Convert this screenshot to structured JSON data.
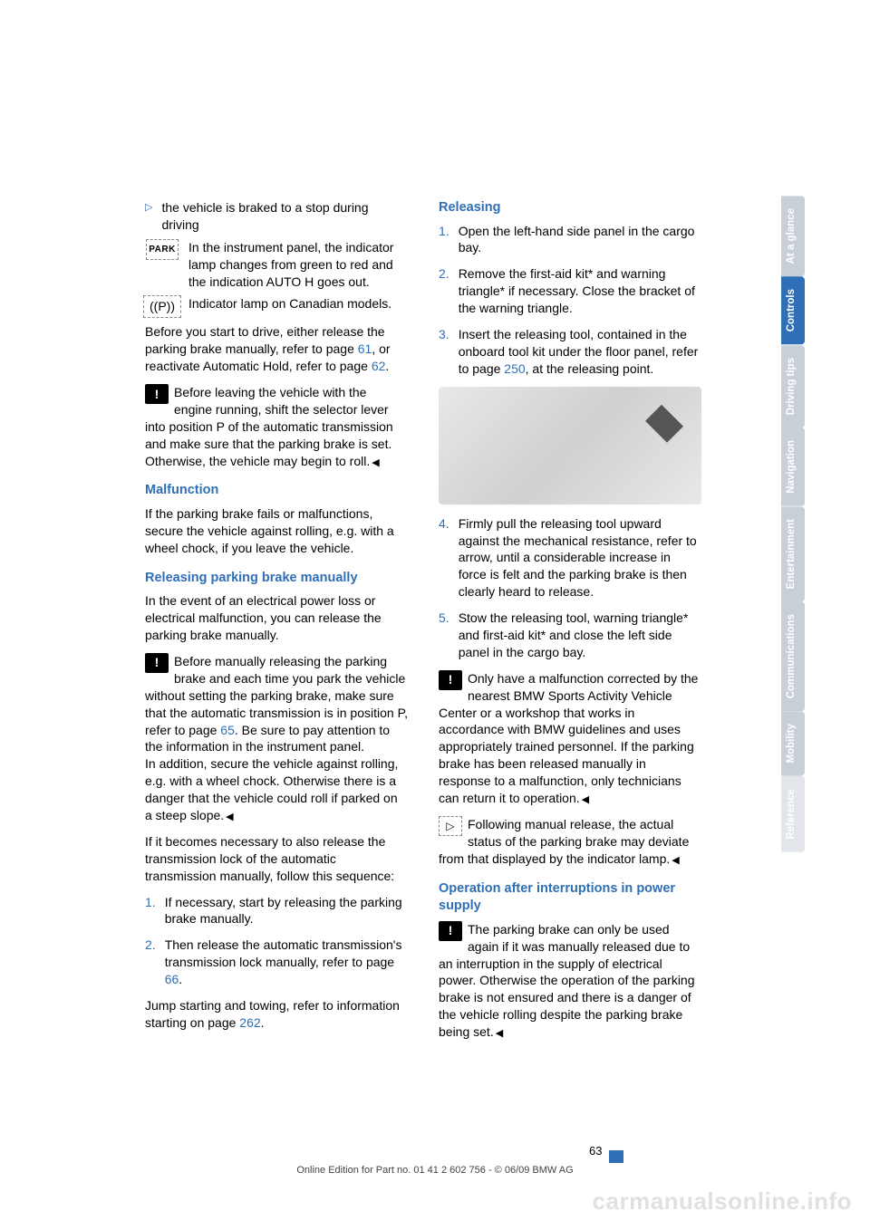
{
  "left": {
    "bullet1": "the vehicle is braked to a stop during driving",
    "park_text": "In the instrument panel, the indicator lamp changes from green to red and the indication AUTO H goes out.",
    "park_label": "PARK",
    "p_text": "Indicator lamp on Canadian models.",
    "p_label": "((P))",
    "before_drive_a": "Before you start to drive, either release the parking brake manually, refer to page ",
    "before_drive_link1": "61",
    "before_drive_b": ", or reactivate Automatic Hold, refer to page ",
    "before_drive_link2": "62",
    "before_drive_c": ".",
    "warn1": "Before leaving the vehicle with the engine running, shift the selector lever into position P of the automatic transmission and make sure that the parking brake is set. Otherwise, the vehicle may begin to roll.",
    "h_malfunction": "Malfunction",
    "malfunction_p": "If the parking brake fails or malfunctions, secure the vehicle against rolling, e.g. with a wheel chock, if you leave the vehicle.",
    "h_release_manual": "Releasing parking brake manually",
    "release_manual_p": "In the event of an electrical power loss or electrical malfunction, you can release the parking brake manually.",
    "warn2_a": "Before manually releasing the parking brake and each time you park the vehicle without setting the parking brake, make sure that the automatic transmission is in position P, refer to page ",
    "warn2_link": "65",
    "warn2_b": ". Be sure to pay attention to the information in the instrument panel.\nIn addition, secure the vehicle against rolling, e.g. with a wheel chock. Otherwise there is a danger that the vehicle could roll if parked on a steep slope.",
    "seq_intro": "If it becomes necessary to also release the transmission lock of the automatic transmission manually, follow this sequence:",
    "step1_n": "1.",
    "step1": "If necessary, start by releasing the parking brake manually.",
    "step2_n": "2.",
    "step2_a": "Then release the automatic transmission's transmission lock manually, refer to page ",
    "step2_link": "66",
    "step2_b": ".",
    "jump_a": "Jump starting and towing, refer to information starting on page ",
    "jump_link": "262",
    "jump_b": "."
  },
  "right": {
    "h_releasing": "Releasing",
    "r1_n": "1.",
    "r1": "Open the left-hand side panel in the cargo bay.",
    "r2_n": "2.",
    "r2": "Remove the first-aid kit* and warning triangle* if necessary. Close the bracket of the warning triangle.",
    "r3_n": "3.",
    "r3_a": "Insert the releasing tool, contained in the onboard tool kit under the floor panel, refer to page ",
    "r3_link": "250",
    "r3_b": ", at the releasing point.",
    "r4_n": "4.",
    "r4": "Firmly pull the releasing tool upward against the mechanical resistance, refer to arrow, until a considerable increase in force is felt and the parking brake is then clearly heard to release.",
    "r5_n": "5.",
    "r5": "Stow the releasing tool, warning triangle* and first-aid kit* and close the left side panel in the cargo bay.",
    "warn3": "Only have a malfunction corrected by the nearest BMW Sports Activity Vehicle Center or a workshop that works in accordance with BMW guidelines and uses appropriately trained personnel. If the parking brake has been released manually in response to a malfunction, only technicians can return it to operation.",
    "note1": "Following manual release, the actual status of the parking brake may deviate from that displayed by the indicator lamp.",
    "h_power": "Operation after interruptions in power supply",
    "warn4": "The parking brake can only be used again if it was manually released due to an interruption in the supply of electrical power. Otherwise the operation of the parking brake is not ensured and there is a danger of the vehicle rolling despite the parking brake being set."
  },
  "tabs": [
    {
      "label": "At a glance",
      "bg": "#c9cfd6",
      "fg": "#ffffff"
    },
    {
      "label": "Controls",
      "bg": "#2e6fb7",
      "fg": "#ffffff"
    },
    {
      "label": "Driving tips",
      "bg": "#c9cfd6",
      "fg": "#ffffff"
    },
    {
      "label": "Navigation",
      "bg": "#c9cfd6",
      "fg": "#ffffff"
    },
    {
      "label": "Entertainment",
      "bg": "#c9cfd6",
      "fg": "#ffffff"
    },
    {
      "label": "Communications",
      "bg": "#c9cfd6",
      "fg": "#ffffff"
    },
    {
      "label": "Mobility",
      "bg": "#c9cfd6",
      "fg": "#ffffff"
    },
    {
      "label": "Reference",
      "bg": "#e2e5e9",
      "fg": "#ffffff"
    }
  ],
  "footer": "Online Edition for Part no. 01 41 2 602 756 - © 06/09 BMW AG",
  "pagenum": "63",
  "watermark": "carmanualsonline.info",
  "warn_glyph": "!",
  "note_glyph": "▷"
}
